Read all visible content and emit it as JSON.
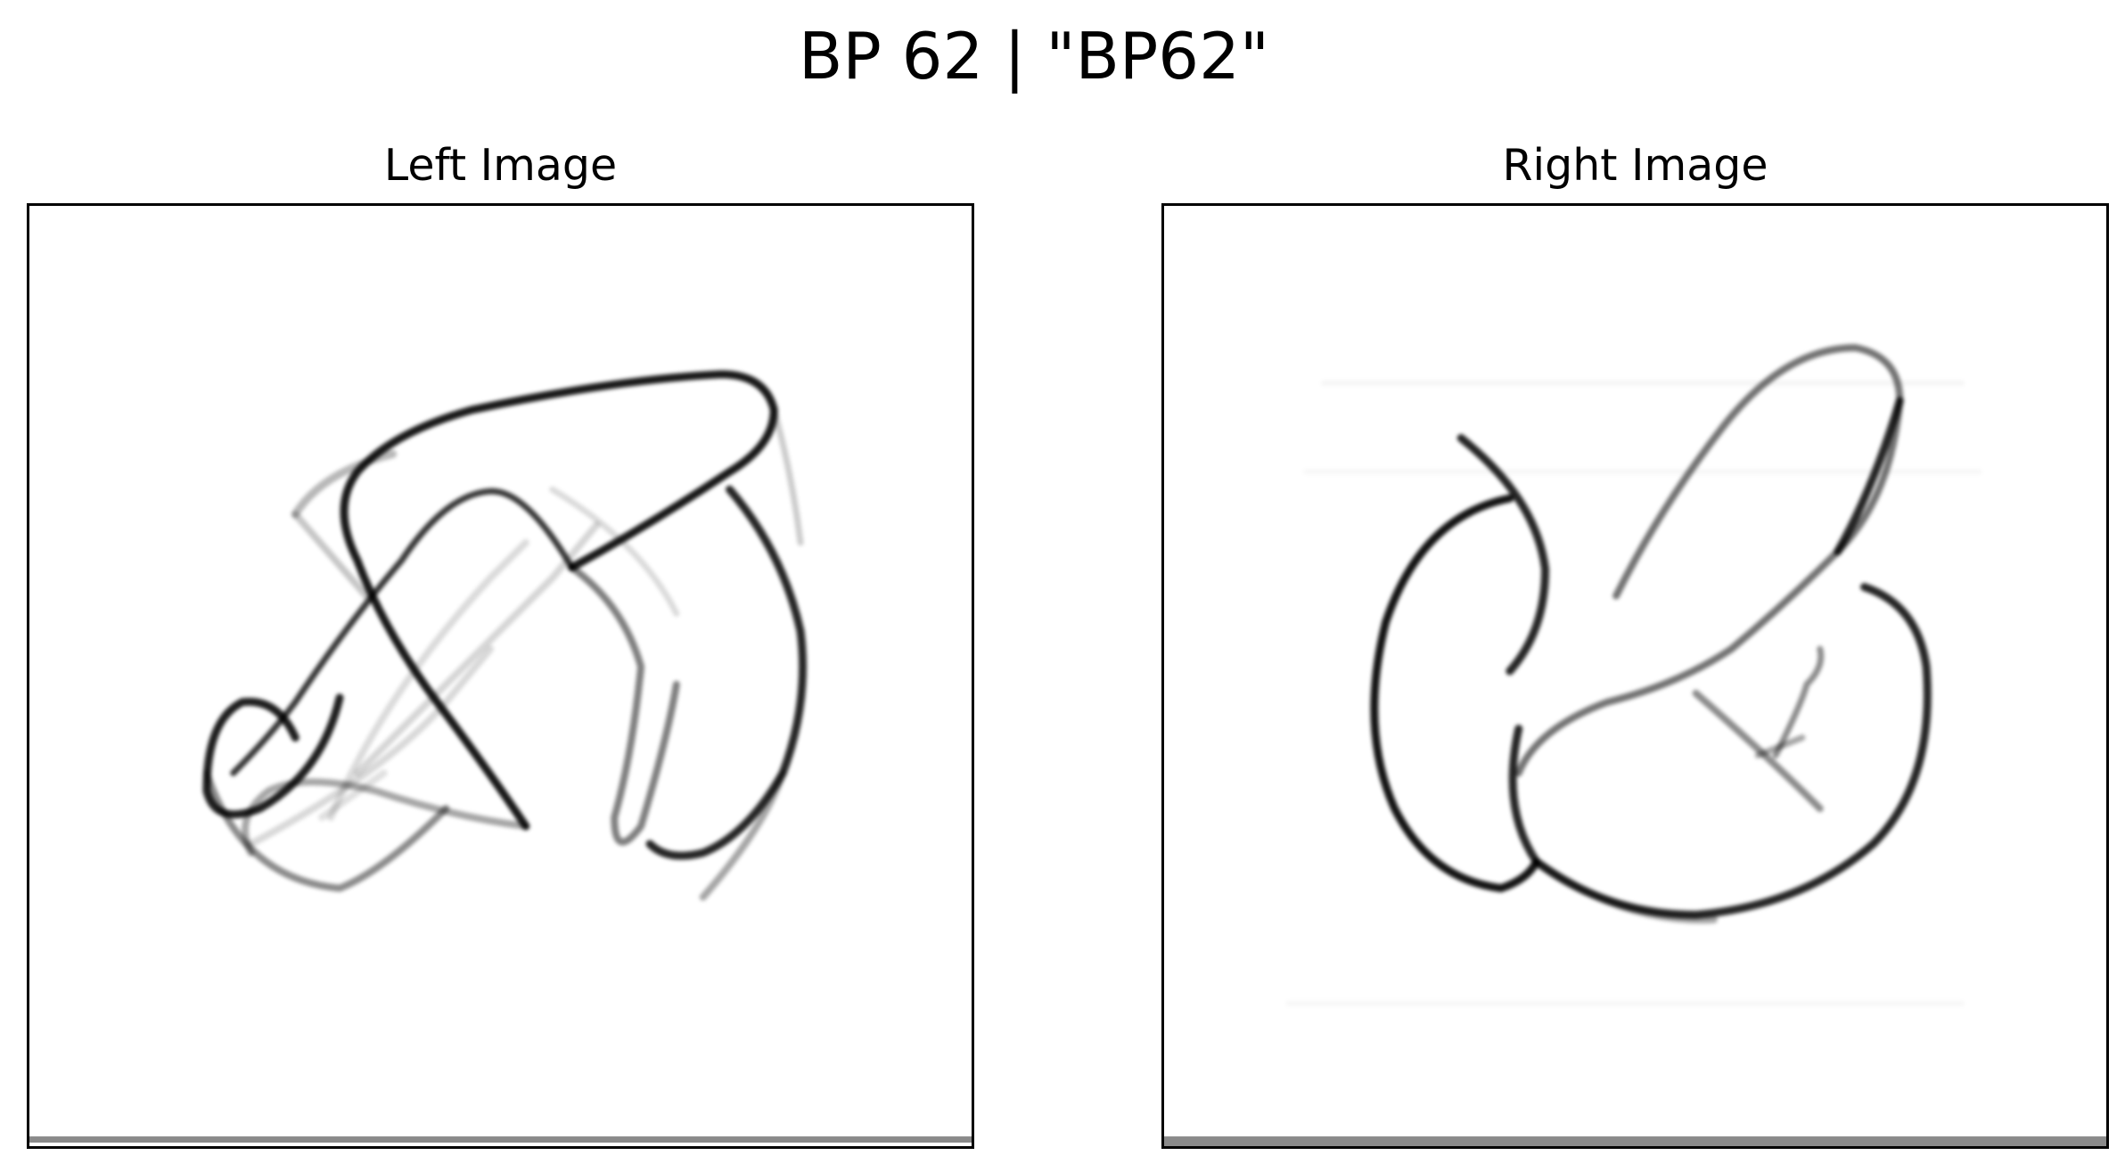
{
  "figure": {
    "title": "BP 62 | \"BP62\""
  },
  "panels": [
    {
      "title": "Left Image",
      "content": "stroke-drawing"
    },
    {
      "title": "Right Image",
      "content": "stroke-drawing"
    }
  ],
  "colors": {
    "background": "#ffffff",
    "frame": "#000000",
    "ink": "#111111"
  }
}
